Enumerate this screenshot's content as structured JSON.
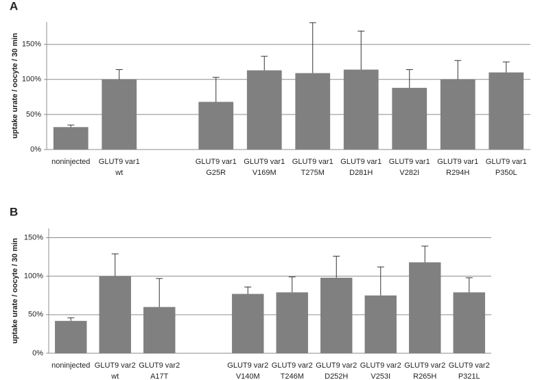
{
  "chart_data": [
    {
      "type": "bar",
      "label": "A",
      "y_label": "uptake urate / oocyte / 30 min",
      "categories": [
        [
          "noninjected"
        ],
        [
          "GLUT9 var1",
          "wt"
        ],
        null,
        [
          "GLUT9 var1",
          "G25R"
        ],
        [
          "GLUT9 var1",
          "V169M"
        ],
        [
          "GLUT9 var1",
          "T275M"
        ],
        [
          "GLUT9 var1",
          "D281H"
        ],
        [
          "GLUT9 var1",
          "V282I"
        ],
        [
          "GLUT9 var1",
          "R294H"
        ],
        [
          "GLUT9 var1",
          "P350L"
        ]
      ],
      "values": [
        32,
        100,
        null,
        68,
        113,
        109,
        114,
        88,
        100,
        110
      ],
      "errors": [
        3,
        14,
        null,
        35,
        20,
        72,
        55,
        26,
        27,
        15
      ],
      "color": "#808080",
      "ylim": [
        0,
        182
      ],
      "yticks": [
        {
          "value": 0,
          "label": "0%"
        },
        {
          "value": 50,
          "label": "50%"
        },
        {
          "value": 100,
          "label": "100%"
        },
        {
          "value": 150,
          "label": "150%"
        }
      ],
      "grid": true
    },
    {
      "type": "bar",
      "label": "B",
      "y_label": "uptake urate / oocyte / 30 min",
      "categories": [
        [
          "noninjected"
        ],
        [
          "GLUT9 var2",
          "wt"
        ],
        [
          "GLUT9 var2",
          "A17T"
        ],
        null,
        [
          "GLUT9 var2",
          "V140M"
        ],
        [
          "GLUT9 var2",
          "T246M"
        ],
        [
          "GLUT9 var2",
          "D252H"
        ],
        [
          "GLUT9 var2",
          "V253I"
        ],
        [
          "GLUT9 var2",
          "R265H"
        ],
        [
          "GLUT9 var2",
          "P321L"
        ]
      ],
      "values": [
        42,
        100,
        60,
        null,
        77,
        79,
        98,
        75,
        118,
        79
      ],
      "errors": [
        4,
        29,
        37,
        null,
        9,
        20,
        28,
        37,
        21,
        19
      ],
      "color": "#808080",
      "ylim": [
        0,
        162
      ],
      "yticks": [
        {
          "value": 0,
          "label": "0%"
        },
        {
          "value": 50,
          "label": "50%"
        },
        {
          "value": 100,
          "label": "100%"
        },
        {
          "value": 150,
          "label": "150%"
        }
      ],
      "grid": true
    }
  ]
}
